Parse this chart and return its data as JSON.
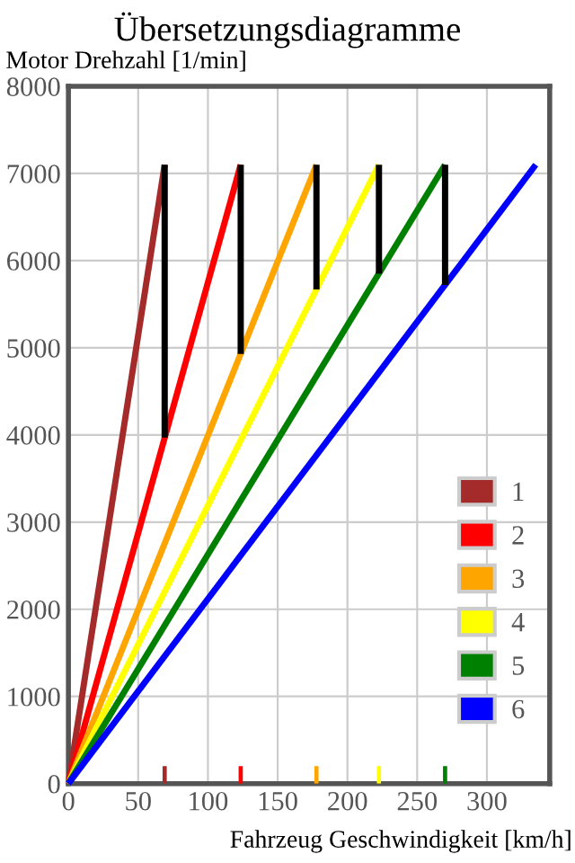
{
  "chart_data": {
    "type": "line",
    "title": "Übersetzungsdiagramme",
    "ylabel": "Motor Drehzahl [1/min]",
    "xlabel": "Fahrzeug Geschwindigkeit [km/h]",
    "xlim": [
      0,
      345
    ],
    "xticks": [
      0,
      50,
      100,
      150,
      200,
      250,
      300
    ],
    "ylim": [
      0,
      8000
    ],
    "yticks": [
      0,
      1000,
      2000,
      3000,
      4000,
      5000,
      6000,
      7000,
      8000
    ],
    "grid": true,
    "legend": "bottom right",
    "marker": "none",
    "line_style": "solid",
    "series": [
      {
        "name": "1",
        "color": "#a52a2a",
        "x": [
          0,
          69
        ],
        "values": [
          0,
          7100
        ]
      },
      {
        "name": "2",
        "color": "#ff0000",
        "x": [
          0,
          123.5
        ],
        "values": [
          0,
          7100
        ]
      },
      {
        "name": "3",
        "color": "#ffa500",
        "x": [
          0,
          177.8
        ],
        "values": [
          0,
          7100
        ]
      },
      {
        "name": "4",
        "color": "#ffff00",
        "x": [
          0,
          222.6
        ],
        "values": [
          0,
          7100
        ]
      },
      {
        "name": "5",
        "color": "#008000",
        "x": [
          0,
          270
        ],
        "values": [
          0,
          7100
        ]
      },
      {
        "name": "6",
        "color": "#0000ff",
        "x": [
          0,
          335
        ],
        "values": [
          0,
          7100
        ]
      },
      {
        "color": "#000000",
        "x": [
          69,
          69
        ],
        "values": [
          7100,
          3970
        ]
      },
      {
        "color": "#000000",
        "x": [
          123.5,
          123.5
        ],
        "values": [
          7100,
          4930
        ]
      },
      {
        "color": "#000000",
        "x": [
          177.8,
          177.8
        ],
        "values": [
          7100,
          5670
        ]
      },
      {
        "color": "#000000",
        "x": [
          222.6,
          222.6
        ],
        "values": [
          7100,
          5850
        ]
      },
      {
        "color": "#000000",
        "x": [
          270,
          270
        ],
        "values": [
          7100,
          5720
        ]
      },
      {
        "type": "bar",
        "colors": [
          "#a52a2a",
          "#ff0000",
          "#ffa500",
          "#ffff00",
          "#008000"
        ],
        "x": [
          69,
          123.5,
          177.8,
          222.6,
          270
        ],
        "values": [
          200,
          200,
          200,
          200,
          200
        ]
      }
    ]
  }
}
